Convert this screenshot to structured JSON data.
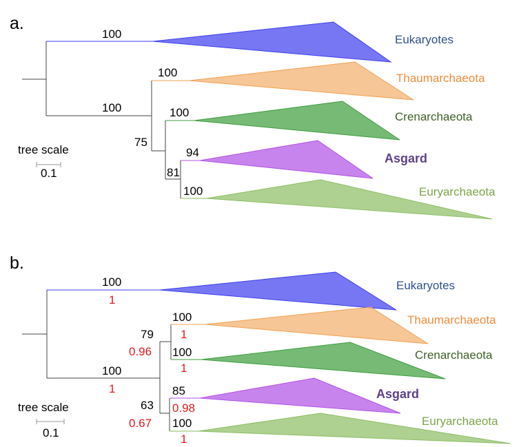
{
  "colors": {
    "eukaryotes": "#3d3df0",
    "thaumarchaeota": "#f0a050",
    "crenarchaeota": "#3c9c3c",
    "asgard": "#b050e6",
    "euryarchaeota": "#8cbd62",
    "branch": "#444444",
    "support_alt": "#e41a1c",
    "label_eukaryotes": "#2f4f8f",
    "label_thaumarchaeota": "#f28c3c",
    "label_crenarchaeota": "#3e5f28",
    "label_asgard": "#5d3f8a",
    "label_euryarchaeota": "#7ea34a"
  },
  "panel_a": {
    "label": "a.",
    "clades": {
      "eukaryotes": "Eukaryotes",
      "thaumarchaeota": "Thaumarchaeota",
      "crenarchaeota": "Crenarchaeota",
      "asgard": "Asgard",
      "euryarchaeota": "Euryarchaeota"
    },
    "support": {
      "eukaryotes": "100",
      "archaea": "100",
      "thaum_cren": "75",
      "thaumarchaeota": "100",
      "crenarchaeota": "100",
      "asgard_eury": "81",
      "asgard": "94",
      "euryarchaeota": "100"
    },
    "scale": {
      "title": "tree scale",
      "value": "0.1"
    }
  },
  "panel_b": {
    "label": "b.",
    "clades": {
      "eukaryotes": "Eukaryotes",
      "thaumarchaeota": "Thaumarchaeota",
      "crenarchaeota": "Crenarchaeota",
      "asgard": "Asgard",
      "euryarchaeota": "Euryarchaeota"
    },
    "support": {
      "eukaryotes": "100",
      "eukaryotes_alt": "1",
      "archaea": "100",
      "archaea_alt": "1",
      "thaum_cren": "79",
      "thaum_cren_alt": "0.96",
      "thaumarchaeota": "100",
      "thaumarchaeota_alt": "1",
      "crenarchaeota": "100",
      "crenarchaeota_alt": "1",
      "asgard_eury": "63",
      "asgard_eury_alt": "0.67",
      "asgard": "85",
      "asgard_alt": "0.98",
      "euryarchaeota": "100",
      "euryarchaeota_alt": "1"
    },
    "scale": {
      "title": "tree scale",
      "value": "0.1"
    }
  }
}
